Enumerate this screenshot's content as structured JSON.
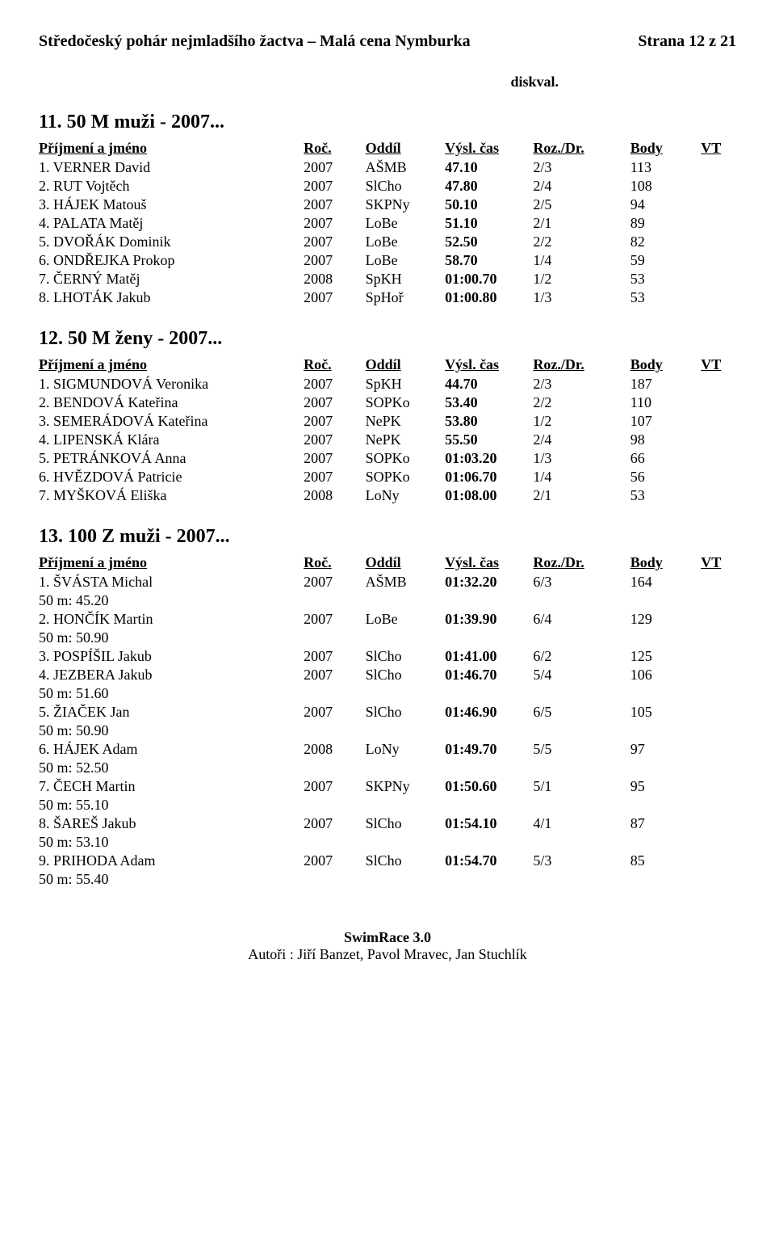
{
  "header": {
    "left": "Středočeský pohár nejmladšího žactva – Malá cena Nymburka",
    "right": "Strana 12 z 21"
  },
  "diskval": "diskval.",
  "columns": {
    "name": "Příjmení a jméno",
    "year": "Roč.",
    "club": "Oddíl",
    "time": "Výsl. čas",
    "heat": "Roz./Dr.",
    "body": "Body",
    "vt": "VT"
  },
  "events": [
    {
      "title": "11. 50 M muži - 2007...",
      "has_splits": false,
      "rows": [
        {
          "place": "1.",
          "name": "VERNER David",
          "year": "2007",
          "club": "AŠMB",
          "time": "47.10",
          "heat": "2/3",
          "body": "113",
          "vt": ""
        },
        {
          "place": "2.",
          "name": "RUT Vojtěch",
          "year": "2007",
          "club": "SlCho",
          "time": "47.80",
          "heat": "2/4",
          "body": "108",
          "vt": ""
        },
        {
          "place": "3.",
          "name": "HÁJEK Matouš",
          "year": "2007",
          "club": "SKPNy",
          "time": "50.10",
          "heat": "2/5",
          "body": "94",
          "vt": ""
        },
        {
          "place": "4.",
          "name": "PALATA Matěj",
          "year": "2007",
          "club": "LoBe",
          "time": "51.10",
          "heat": "2/1",
          "body": "89",
          "vt": ""
        },
        {
          "place": "5.",
          "name": "DVOŘÁK Dominik",
          "year": "2007",
          "club": "LoBe",
          "time": "52.50",
          "heat": "2/2",
          "body": "82",
          "vt": ""
        },
        {
          "place": "6.",
          "name": "ONDŘEJKA Prokop",
          "year": "2007",
          "club": "LoBe",
          "time": "58.70",
          "heat": "1/4",
          "body": "59",
          "vt": ""
        },
        {
          "place": "7.",
          "name": "ČERNÝ Matěj",
          "year": "2008",
          "club": "SpKH",
          "time": "01:00.70",
          "heat": "1/2",
          "body": "53",
          "vt": ""
        },
        {
          "place": "8.",
          "name": "LHOTÁK Jakub",
          "year": "2007",
          "club": "SpHoř",
          "time": "01:00.80",
          "heat": "1/3",
          "body": "53",
          "vt": ""
        }
      ]
    },
    {
      "title": "12. 50 M ženy - 2007...",
      "has_splits": false,
      "rows": [
        {
          "place": "1.",
          "name": "SIGMUNDOVÁ Veronika",
          "year": "2007",
          "club": "SpKH",
          "time": "44.70",
          "heat": "2/3",
          "body": "187",
          "vt": ""
        },
        {
          "place": "2.",
          "name": "BENDOVÁ Kateřina",
          "year": "2007",
          "club": "SOPKo",
          "time": "53.40",
          "heat": "2/2",
          "body": "110",
          "vt": ""
        },
        {
          "place": "3.",
          "name": "SEMERÁDOVÁ Kateřina",
          "year": "2007",
          "club": "NePK",
          "time": "53.80",
          "heat": "1/2",
          "body": "107",
          "vt": ""
        },
        {
          "place": "4.",
          "name": "LIPENSKÁ Klára",
          "year": "2007",
          "club": "NePK",
          "time": "55.50",
          "heat": "2/4",
          "body": "98",
          "vt": ""
        },
        {
          "place": "5.",
          "name": "PETRÁNKOVÁ Anna",
          "year": "2007",
          "club": "SOPKo",
          "time": "01:03.20",
          "heat": "1/3",
          "body": "66",
          "vt": ""
        },
        {
          "place": "6.",
          "name": "HVĚZDOVÁ Patricie",
          "year": "2007",
          "club": "SOPKo",
          "time": "01:06.70",
          "heat": "1/4",
          "body": "56",
          "vt": ""
        },
        {
          "place": "7.",
          "name": "MYŠKOVÁ Eliška",
          "year": "2008",
          "club": "LoNy",
          "time": "01:08.00",
          "heat": "2/1",
          "body": "53",
          "vt": ""
        }
      ]
    },
    {
      "title": "13. 100 Z muži - 2007...",
      "has_splits": true,
      "rows": [
        {
          "place": "1.",
          "name": "ŠVÁSTA Michal",
          "year": "2007",
          "club": "AŠMB",
          "time": "01:32.20",
          "heat": "6/3",
          "body": "164",
          "vt": "",
          "split": "50 m: 45.20"
        },
        {
          "place": "2.",
          "name": "HONČÍK Martin",
          "year": "2007",
          "club": "LoBe",
          "time": "01:39.90",
          "heat": "6/4",
          "body": "129",
          "vt": "",
          "split": "50 m: 50.90"
        },
        {
          "place": "3.",
          "name": "POSPÍŠIL Jakub",
          "year": "2007",
          "club": "SlCho",
          "time": "01:41.00",
          "heat": "6/2",
          "body": "125",
          "vt": "",
          "split": ""
        },
        {
          "place": "4.",
          "name": "JEZBERA Jakub",
          "year": "2007",
          "club": "SlCho",
          "time": "01:46.70",
          "heat": "5/4",
          "body": "106",
          "vt": "",
          "split": "50 m: 51.60"
        },
        {
          "place": "5.",
          "name": "ŽIAČEK Jan",
          "year": "2007",
          "club": "SlCho",
          "time": "01:46.90",
          "heat": "6/5",
          "body": "105",
          "vt": "",
          "split": "50 m: 50.90"
        },
        {
          "place": "6.",
          "name": "HÁJEK Adam",
          "year": "2008",
          "club": "LoNy",
          "time": "01:49.70",
          "heat": "5/5",
          "body": "97",
          "vt": "",
          "split": "50 m: 52.50"
        },
        {
          "place": "7.",
          "name": "ČECH Martin",
          "year": "2007",
          "club": "SKPNy",
          "time": "01:50.60",
          "heat": "5/1",
          "body": "95",
          "vt": "",
          "split": "50 m: 55.10"
        },
        {
          "place": "8.",
          "name": "ŠAREŠ Jakub",
          "year": "2007",
          "club": "SlCho",
          "time": "01:54.10",
          "heat": "4/1",
          "body": "87",
          "vt": "",
          "split": "50 m: 53.10"
        },
        {
          "place": "9.",
          "name": "PRIHODA Adam",
          "year": "2007",
          "club": "SlCho",
          "time": "01:54.70",
          "heat": "5/3",
          "body": "85",
          "vt": "",
          "split": "50 m: 55.40"
        }
      ]
    }
  ],
  "footer": {
    "title": "SwimRace 3.0",
    "authors": "Autoři : Jiří Banzet, Pavol Mravec, Jan Stuchlík"
  }
}
